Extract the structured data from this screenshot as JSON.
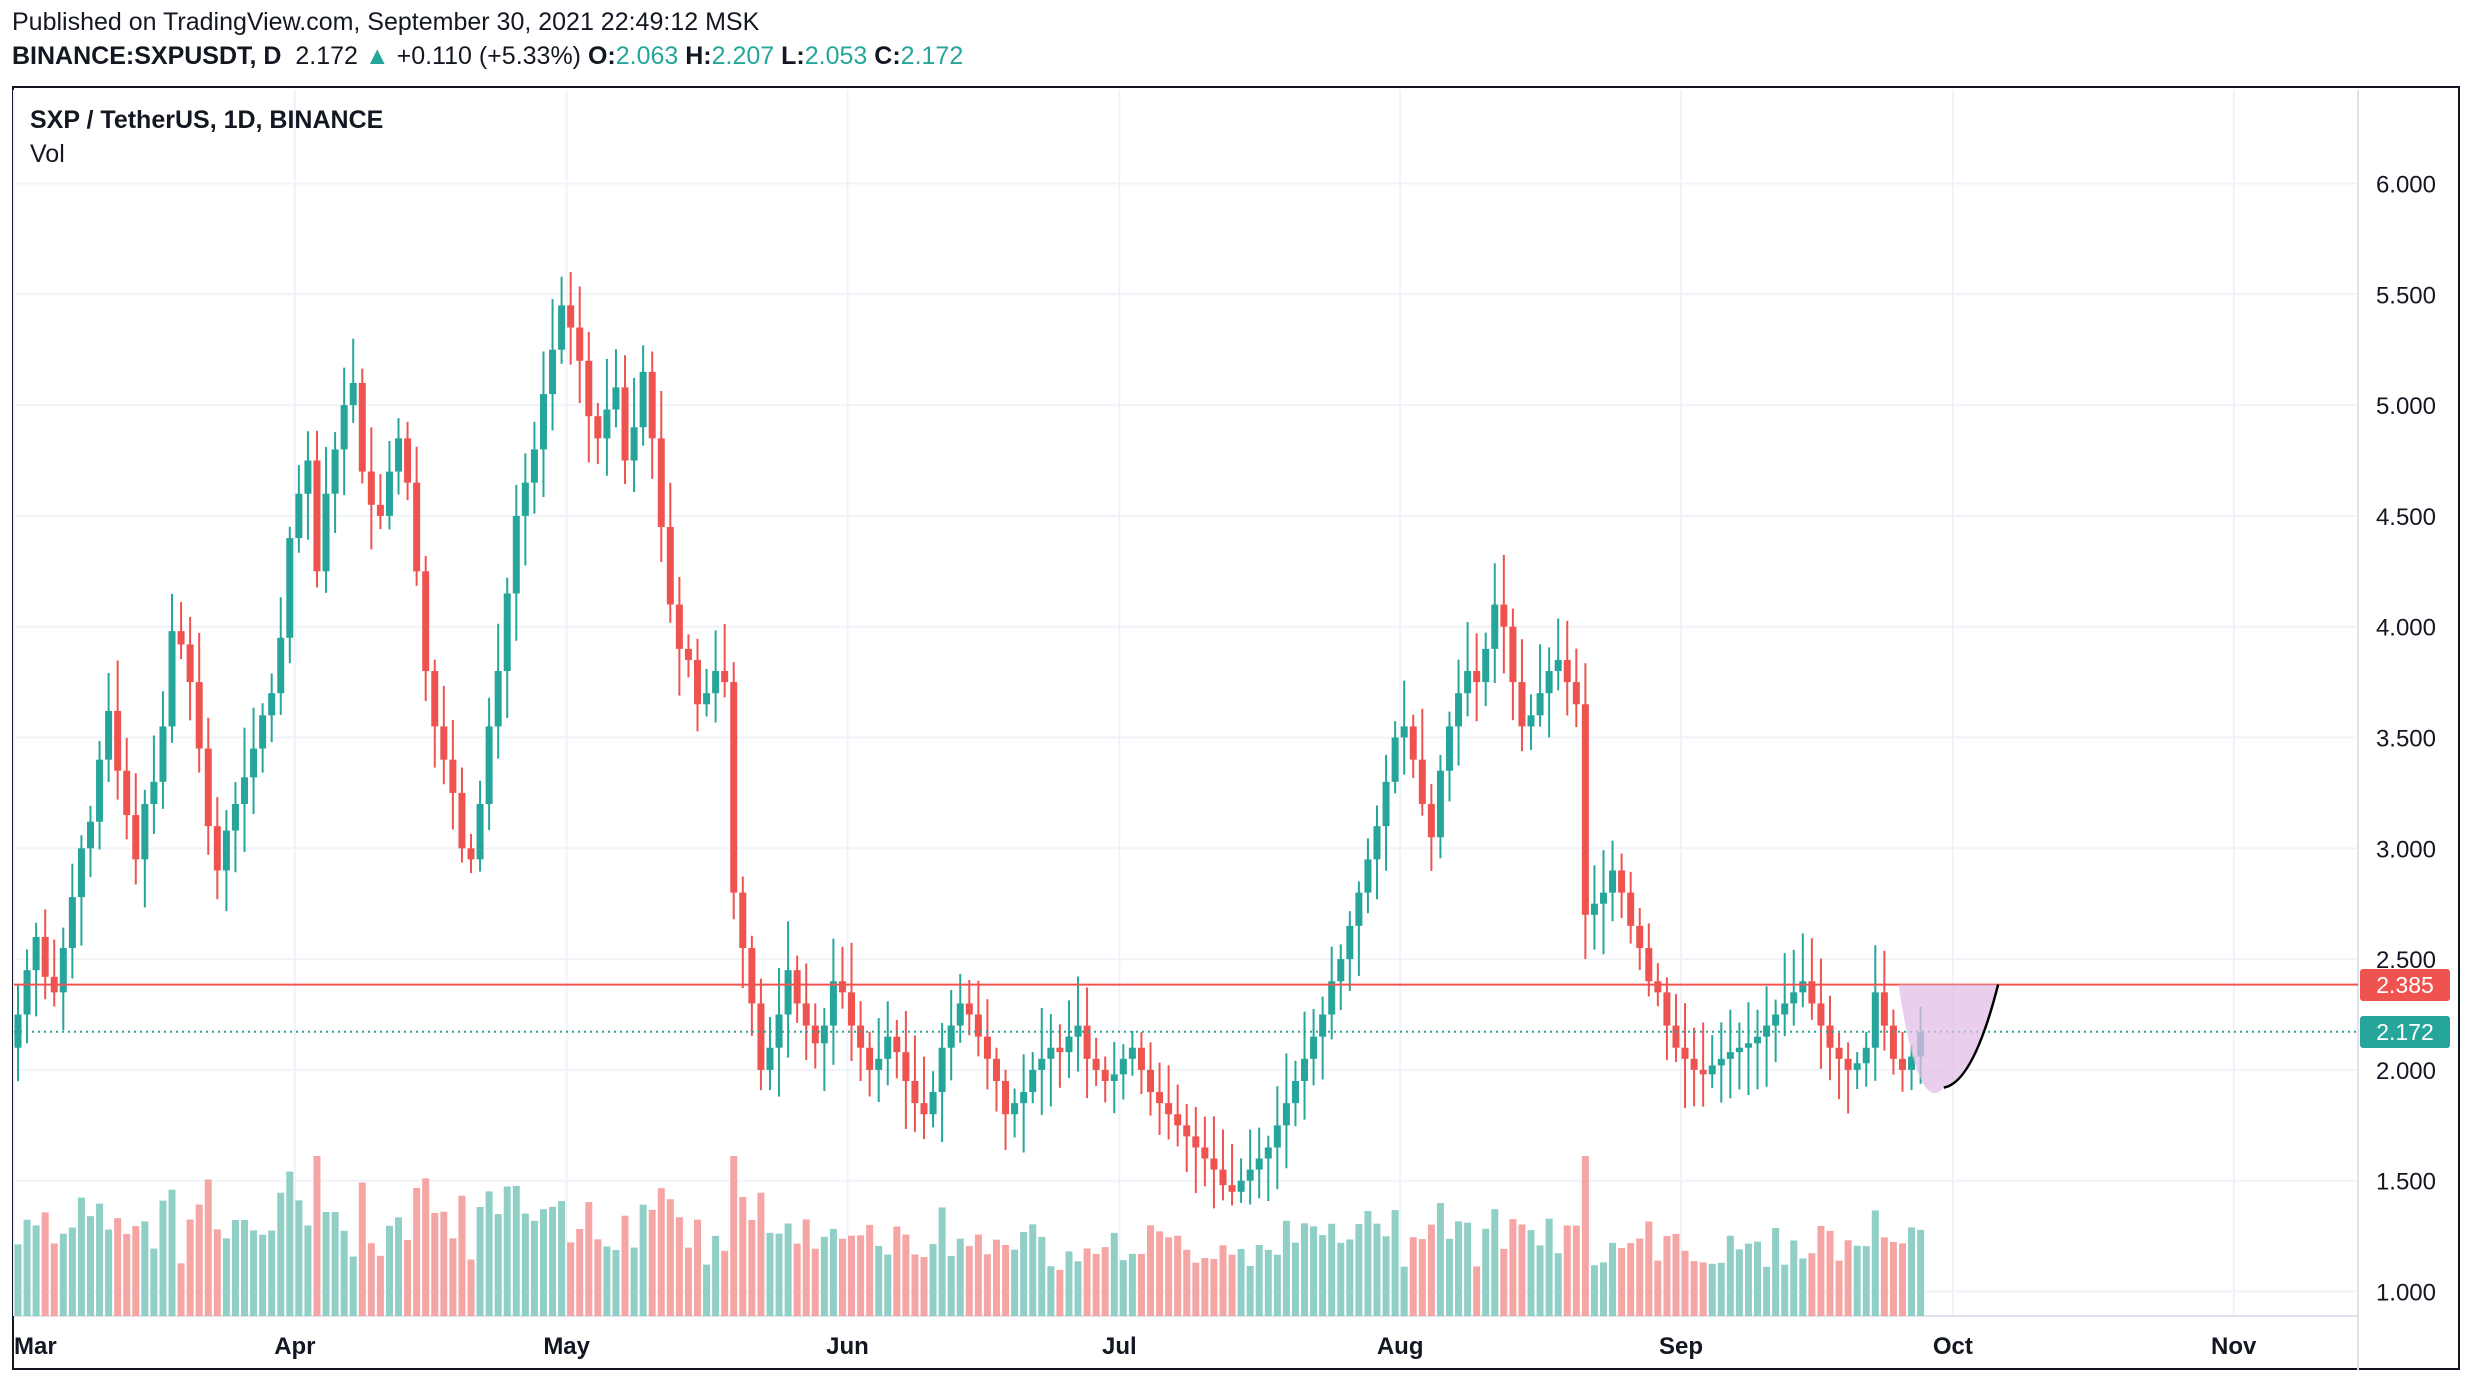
{
  "header": {
    "published": "Published on TradingView.com, September 30, 2021 22:49:12 MSK",
    "symbol": "BINANCE:SXPUSDT, D",
    "last": "2.172",
    "change": "+0.110 (+5.33%)",
    "o_label": "O:",
    "o_value": "2.063",
    "h_label": "H:",
    "h_value": "2.207",
    "l_label": "L:",
    "l_value": "2.053",
    "c_label": "C:",
    "c_value": "2.172"
  },
  "chart_title": "SXP / TetherUS, 1D, BINANCE",
  "volume_label": "Vol",
  "colors": {
    "up": "#26a69a",
    "down": "#ef5350",
    "up_vol": "#8fcfc6",
    "down_vol": "#f5a5a3",
    "resistance": "#ef5350",
    "cup_fill": "#e1bee7"
  },
  "chart_data": {
    "type": "candlestick",
    "y_ticks": [
      "6.000",
      "5.500",
      "5.000",
      "4.500",
      "4.000",
      "3.500",
      "3.000",
      "2.500",
      "2.000",
      "1.500",
      "1.000"
    ],
    "x_ticks": [
      "Mar",
      "Apr",
      "May",
      "Jun",
      "Jul",
      "Aug",
      "Sep",
      "Oct",
      "Nov"
    ],
    "resistance_line": {
      "value": 2.385,
      "label": "2.385"
    },
    "last_price": {
      "value": 2.172,
      "label": "2.172"
    },
    "cup_pattern": {
      "start": "2021-09-25",
      "bottom": "2021-09-30",
      "end": "2021-10-06",
      "top_value": 2.385,
      "bottom_value": 1.92
    },
    "candles_by_month": [
      {
        "month": "Mar",
        "closes": [
          2.25,
          2.45,
          2.6,
          2.42,
          2.35,
          2.55,
          2.78,
          3.0,
          3.12,
          3.4,
          3.62,
          3.35,
          3.15,
          2.95,
          3.2,
          3.3,
          3.55,
          3.98,
          3.92,
          3.75,
          3.45,
          3.1,
          2.9,
          3.08,
          3.2,
          3.32,
          3.45,
          3.6
        ]
      },
      {
        "month": "Apr",
        "closes": [
          3.7,
          3.95,
          4.4,
          4.6,
          4.75,
          4.25,
          4.6,
          4.8,
          5.0,
          5.1,
          4.7,
          4.55,
          4.5,
          4.7,
          4.85,
          4.65,
          4.25,
          3.8,
          3.55,
          3.4,
          3.25,
          3.0,
          2.95,
          3.2,
          3.55,
          3.8,
          4.15,
          4.5,
          4.65,
          4.8
        ]
      },
      {
        "month": "May",
        "closes": [
          5.05,
          5.25,
          5.45,
          5.35,
          5.2,
          4.95,
          4.85,
          4.98,
          5.08,
          4.75,
          4.9,
          5.15,
          4.85,
          4.45,
          4.1,
          3.9,
          3.85,
          3.65,
          3.7,
          3.8,
          3.75,
          2.8,
          2.55,
          2.3,
          2.0,
          2.1,
          2.25,
          2.45,
          2.3,
          2.2,
          2.12
        ]
      },
      {
        "month": "Jun",
        "closes": [
          2.2,
          2.4,
          2.35,
          2.2,
          2.1,
          2.0,
          2.05,
          2.15,
          2.08,
          1.95,
          1.85,
          1.8,
          1.9,
          2.1,
          2.2,
          2.3,
          2.25,
          2.15,
          2.05,
          1.95,
          1.8,
          1.85,
          1.9,
          2.0,
          2.05,
          2.1,
          2.08,
          2.15,
          2.2,
          2.05
        ]
      },
      {
        "month": "Jul",
        "closes": [
          2.0,
          1.95,
          1.98,
          2.05,
          2.1,
          2.0,
          1.9,
          1.85,
          1.8,
          1.75,
          1.7,
          1.65,
          1.6,
          1.55,
          1.48,
          1.45,
          1.5,
          1.55,
          1.6,
          1.65,
          1.75,
          1.85,
          1.95,
          2.05,
          2.15,
          2.25,
          2.4,
          2.5,
          2.65,
          2.8,
          2.95
        ]
      },
      {
        "month": "Aug",
        "closes": [
          3.1,
          3.3,
          3.5,
          3.55,
          3.4,
          3.2,
          3.05,
          3.35,
          3.55,
          3.7,
          3.8,
          3.75,
          3.9,
          4.1,
          4.0,
          3.75,
          3.55,
          3.6,
          3.7,
          3.8,
          3.85,
          3.75,
          3.65,
          2.7,
          2.75,
          2.8,
          2.9,
          2.8,
          2.65,
          2.55,
          2.4
        ]
      },
      {
        "month": "Sep",
        "closes": [
          2.35,
          2.2,
          2.1,
          2.05,
          2.0,
          1.98,
          2.02,
          2.05,
          2.08,
          2.1,
          2.12,
          2.15,
          2.2,
          2.25,
          2.3,
          2.35,
          2.4,
          2.3,
          2.2,
          2.1,
          2.05,
          2.0,
          2.03,
          2.1,
          2.35,
          2.2,
          2.05,
          2.0,
          2.06,
          2.17
        ]
      }
    ]
  }
}
